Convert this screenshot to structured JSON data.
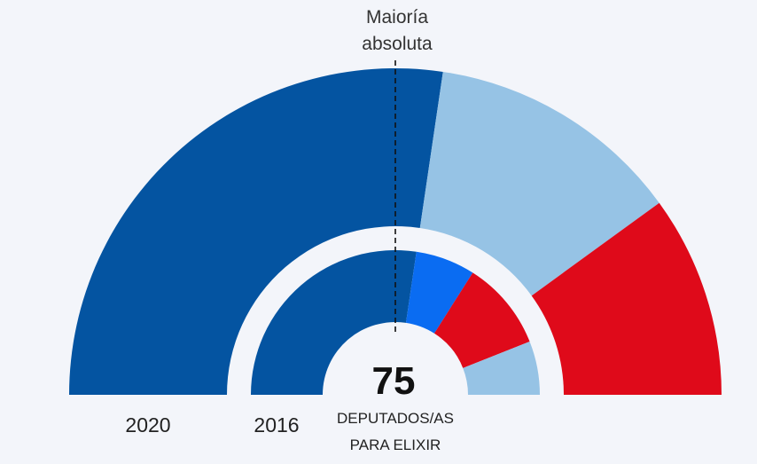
{
  "chart_data": {
    "type": "pie",
    "variant": "parliament-semicircle",
    "total_seats": 75,
    "total_label": "DEPUTADOS/AS",
    "total_label_2": "PARA ELIXIR",
    "majority_label_line1": "Maioría",
    "majority_label_line2": "absoluta",
    "majority_seats": 38,
    "rings": [
      {
        "year": "2020",
        "segments": [
          {
            "seats": 41,
            "color": "#0454a1"
          },
          {
            "seats": 19,
            "color": "#96c3e5"
          },
          {
            "seats": 15,
            "color": "#df0a1a"
          }
        ]
      },
      {
        "year": "2016",
        "segments": [
          {
            "seats": 41,
            "color": "#0454a1"
          },
          {
            "seats": 10,
            "color": "#0a6cf2"
          },
          {
            "seats": 15,
            "color": "#df0a1a"
          },
          {
            "seats": 9,
            "color": "#96c3e5"
          }
        ]
      }
    ]
  }
}
